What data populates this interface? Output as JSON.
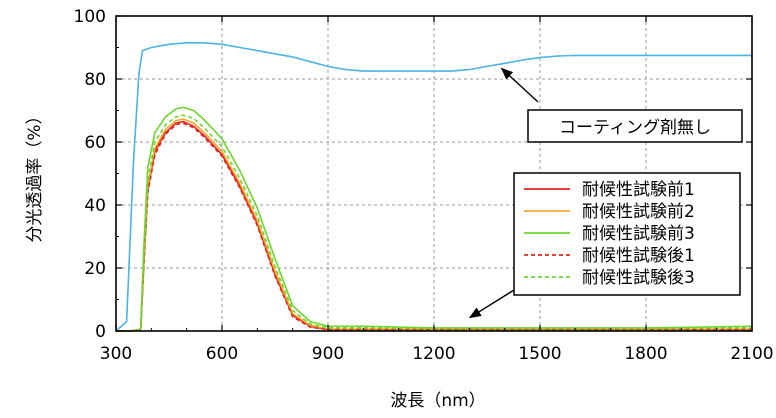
{
  "chart_data": {
    "type": "line",
    "title": "",
    "xlabel": "波長（nm）",
    "ylabel": "分光透過率（%）",
    "xlim": [
      300,
      2100
    ],
    "ylim": [
      0,
      100
    ],
    "x_ticks": [
      300,
      600,
      900,
      1200,
      1500,
      1800,
      2100
    ],
    "y_ticks": [
      0,
      20,
      40,
      60,
      80,
      100
    ],
    "grid": true,
    "legend_position": "center-right",
    "series": [
      {
        "name": "コーティング剤無し",
        "color": "#4ab4e6",
        "dash": "solid",
        "in_legend": false,
        "x": [
          300,
          330,
          350,
          365,
          375,
          400,
          450,
          500,
          550,
          600,
          650,
          700,
          750,
          800,
          850,
          900,
          950,
          1000,
          1050,
          1100,
          1150,
          1200,
          1250,
          1300,
          1350,
          1400,
          1450,
          1500,
          1550,
          1600,
          1700,
          1800,
          1900,
          2000,
          2100
        ],
        "values": [
          0,
          3,
          55,
          82,
          89,
          90,
          91,
          91.5,
          91.5,
          91,
          90,
          89,
          88,
          87,
          85.5,
          84,
          83,
          82.5,
          82.5,
          82.5,
          82.5,
          82.5,
          82.5,
          83,
          84,
          85,
          86,
          86.8,
          87.3,
          87.5,
          87.5,
          87.5,
          87.5,
          87.5,
          87.5
        ]
      },
      {
        "name": "耐候性試験前1",
        "color": "#e8231c",
        "dash": "solid",
        "in_legend": true,
        "x": [
          300,
          340,
          370,
          378,
          390,
          410,
          440,
          470,
          490,
          520,
          550,
          600,
          650,
          700,
          750,
          800,
          850,
          900,
          1000,
          1200,
          1500,
          1800,
          2100
        ],
        "values": [
          0,
          0,
          0.5,
          20,
          45,
          57,
          63,
          66,
          66.5,
          65,
          62,
          56,
          46,
          34,
          18,
          5,
          1.5,
          0.5,
          0.5,
          0.5,
          0.5,
          0.5,
          0.5
        ]
      },
      {
        "name": "耐候性試験前2",
        "color": "#f0a830",
        "dash": "solid",
        "in_legend": true,
        "x": [
          300,
          340,
          370,
          378,
          390,
          410,
          440,
          470,
          490,
          520,
          550,
          600,
          650,
          700,
          750,
          800,
          850,
          900,
          1000,
          1200,
          1500,
          1800,
          2100
        ],
        "values": [
          0,
          0,
          0.5,
          21,
          46,
          58,
          64,
          66.8,
          67.3,
          66,
          63,
          57,
          47,
          35,
          19,
          5.5,
          1.8,
          0.6,
          0.6,
          0.6,
          0.6,
          0.6,
          0.6
        ]
      },
      {
        "name": "耐候性試験前3",
        "color": "#6dd62d",
        "dash": "solid",
        "in_legend": true,
        "x": [
          300,
          340,
          370,
          378,
          390,
          410,
          440,
          470,
          490,
          520,
          550,
          600,
          650,
          700,
          750,
          800,
          850,
          900,
          1000,
          1200,
          1500,
          1800,
          2100
        ],
        "values": [
          0,
          0,
          0.5,
          25,
          52,
          63,
          68,
          70.5,
          71,
          70,
          67,
          61,
          51,
          39,
          23,
          8,
          3,
          1.5,
          1.5,
          1,
          1,
          1,
          1.5
        ]
      },
      {
        "name": "耐候性試験後1",
        "color": "#e8231c",
        "dash": "dashed",
        "in_legend": true,
        "x": [
          300,
          340,
          370,
          378,
          390,
          410,
          440,
          470,
          490,
          520,
          550,
          600,
          650,
          700,
          750,
          800,
          850,
          900,
          1000,
          1200,
          1500,
          1800,
          2100
        ],
        "values": [
          0,
          0,
          0.5,
          19,
          44,
          56,
          62.5,
          65.5,
          66,
          64.5,
          61.5,
          55.5,
          45.5,
          33.5,
          17.5,
          4.5,
          1.2,
          0.4,
          0.4,
          0.4,
          0.4,
          0.4,
          0.4
        ]
      },
      {
        "name": "耐候性試験後3",
        "color": "#6dd62d",
        "dash": "dashed",
        "in_legend": true,
        "x": [
          300,
          340,
          370,
          378,
          390,
          410,
          440,
          470,
          490,
          520,
          550,
          600,
          650,
          700,
          750,
          800,
          850,
          900,
          1000,
          1200,
          1500,
          1800,
          2100
        ],
        "values": [
          0,
          0,
          0.5,
          22,
          48,
          60,
          65.5,
          68,
          68.5,
          67.5,
          64.5,
          58.5,
          48.5,
          36.5,
          20.5,
          6.5,
          2.2,
          1,
          1,
          0.8,
          0.8,
          0.8,
          1
        ]
      }
    ],
    "annotations": [
      {
        "text": "コーティング剤無し",
        "arrow_target": [
          1380,
          84
        ]
      },
      {
        "text": "",
        "arrow_target": [
          1290,
          3
        ]
      }
    ]
  }
}
